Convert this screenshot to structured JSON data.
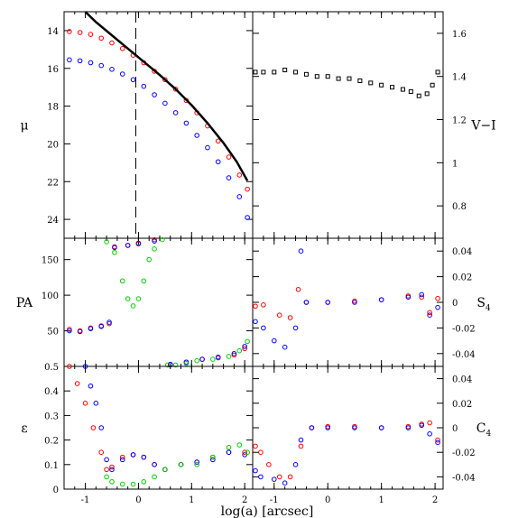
{
  "chart_data": {
    "type": "scatter",
    "xlabel": "log(a) [arcsec]",
    "x_ticks": [
      "-1",
      "0",
      "1",
      "2"
    ],
    "xlim": [
      -1.4,
      2.15
    ],
    "colors": {
      "red": "#ff0000",
      "blue": "#0000ff",
      "green": "#00cc00",
      "black": "#000000"
    },
    "panels": [
      {
        "id": "mu",
        "ylabel": "μ",
        "ylim": [
          25,
          13
        ],
        "yticks": [
          14,
          16,
          18,
          20,
          22,
          24
        ],
        "ytick_side": "left",
        "vline_x": -0.05,
        "series": [
          {
            "color": "red",
            "points": [
              [
                -1.3,
                14.05
              ],
              [
                -1.1,
                14.1
              ],
              [
                -0.9,
                14.2
              ],
              [
                -0.7,
                14.4
              ],
              [
                -0.5,
                14.65
              ],
              [
                -0.3,
                14.95
              ],
              [
                -0.1,
                15.3
              ],
              [
                0.1,
                15.7
              ],
              [
                0.3,
                16.15
              ],
              [
                0.5,
                16.6
              ],
              [
                0.7,
                17.1
              ],
              [
                0.9,
                17.7
              ],
              [
                1.1,
                18.35
              ],
              [
                1.3,
                19.05
              ],
              [
                1.5,
                19.85
              ],
              [
                1.7,
                20.7
              ],
              [
                1.9,
                21.65
              ],
              [
                2.05,
                22.4
              ]
            ]
          },
          {
            "color": "blue",
            "points": [
              [
                -1.3,
                15.55
              ],
              [
                -1.1,
                15.6
              ],
              [
                -0.9,
                15.7
              ],
              [
                -0.7,
                15.85
              ],
              [
                -0.5,
                16.05
              ],
              [
                -0.3,
                16.3
              ],
              [
                -0.1,
                16.6
              ],
              [
                0.1,
                16.95
              ],
              [
                0.3,
                17.4
              ],
              [
                0.5,
                17.85
              ],
              [
                0.7,
                18.35
              ],
              [
                0.9,
                18.9
              ],
              [
                1.1,
                19.55
              ],
              [
                1.3,
                20.2
              ],
              [
                1.5,
                20.95
              ],
              [
                1.7,
                21.8
              ],
              [
                1.9,
                22.8
              ],
              [
                2.05,
                23.9
              ]
            ]
          },
          {
            "color": "black",
            "line": true,
            "points": [
              [
                -1.0,
                13.0
              ],
              [
                -0.8,
                13.55
              ],
              [
                -0.5,
                14.25
              ],
              [
                -0.2,
                14.95
              ],
              [
                0.1,
                15.65
              ],
              [
                0.4,
                16.35
              ],
              [
                0.7,
                17.1
              ],
              [
                1.0,
                17.95
              ],
              [
                1.3,
                18.9
              ],
              [
                1.6,
                19.95
              ],
              [
                1.85,
                20.95
              ],
              [
                2.05,
                21.95
              ]
            ]
          }
        ]
      },
      {
        "id": "vi",
        "ylabel": "V−I",
        "ylim": [
          0.65,
          1.7
        ],
        "yticks": [
          0.8,
          1.0,
          1.2,
          1.4,
          1.6
        ],
        "ytick_side": "right",
        "series": [
          {
            "color": "black",
            "square": true,
            "points": [
              [
                -1.35,
                1.42
              ],
              [
                -1.2,
                1.42
              ],
              [
                -1.0,
                1.42
              ],
              [
                -0.8,
                1.43
              ],
              [
                -0.6,
                1.42
              ],
              [
                -0.4,
                1.41
              ],
              [
                -0.2,
                1.4
              ],
              [
                0.0,
                1.4
              ],
              [
                0.2,
                1.39
              ],
              [
                0.4,
                1.39
              ],
              [
                0.6,
                1.38
              ],
              [
                0.8,
                1.37
              ],
              [
                1.0,
                1.36
              ],
              [
                1.2,
                1.35
              ],
              [
                1.4,
                1.34
              ],
              [
                1.55,
                1.33
              ],
              [
                1.7,
                1.31
              ],
              [
                1.85,
                1.32
              ],
              [
                1.95,
                1.36
              ],
              [
                2.05,
                1.42
              ]
            ]
          }
        ]
      },
      {
        "id": "pa",
        "ylabel": "PA",
        "ylim": [
          0,
          180
        ],
        "yticks": [
          50,
          100,
          150
        ],
        "ytick_side": "left",
        "series": [
          {
            "color": "red",
            "points": [
              [
                -1.3,
                52
              ],
              [
                -1.1,
                50
              ],
              [
                -0.9,
                54
              ],
              [
                -0.7,
                57
              ],
              [
                -0.55,
                60
              ],
              [
                -0.45,
                168
              ],
              [
                -0.2,
                170
              ],
              [
                0.0,
                172
              ],
              [
                0.3,
                178
              ],
              [
                0.6,
                2
              ],
              [
                0.9,
                6
              ],
              [
                1.2,
                10
              ],
              [
                1.5,
                12
              ],
              [
                1.8,
                16
              ],
              [
                2.0,
                25
              ]
            ]
          },
          {
            "color": "blue",
            "points": [
              [
                -1.3,
                50
              ],
              [
                -1.1,
                49
              ],
              [
                -0.9,
                53
              ],
              [
                -0.7,
                56
              ],
              [
                -0.55,
                62
              ],
              [
                -0.45,
                167
              ],
              [
                -0.2,
                170
              ],
              [
                0.0,
                173
              ],
              [
                0.3,
                176
              ],
              [
                0.6,
                3
              ],
              [
                0.9,
                6
              ],
              [
                1.2,
                10
              ],
              [
                1.5,
                13
              ],
              [
                1.8,
                18
              ],
              [
                2.0,
                28
              ]
            ]
          },
          {
            "color": "green",
            "points": [
              [
                -0.6,
                175
              ],
              [
                -0.45,
                160
              ],
              [
                -0.3,
                120
              ],
              [
                -0.2,
                95
              ],
              [
                -0.1,
                85
              ],
              [
                0.0,
                95
              ],
              [
                0.1,
                120
              ],
              [
                0.2,
                150
              ],
              [
                0.3,
                165
              ],
              [
                0.45,
                178
              ],
              [
                0.55,
                2
              ],
              [
                0.7,
                2
              ],
              [
                0.9,
                4
              ],
              [
                1.1,
                8
              ],
              [
                1.4,
                10
              ],
              [
                1.7,
                14
              ],
              [
                1.9,
                22
              ],
              [
                2.05,
                35
              ]
            ]
          }
        ]
      },
      {
        "id": "s4",
        "ylabel": "S4",
        "ylim": [
          -0.05,
          0.05
        ],
        "yticks": [
          -0.04,
          -0.02,
          0,
          0.02,
          0.04
        ],
        "ytick_side": "right",
        "series": [
          {
            "color": "red",
            "points": [
              [
                -1.35,
                -0.003
              ],
              [
                -1.2,
                -0.002
              ],
              [
                -0.9,
                -0.01
              ],
              [
                -0.7,
                -0.012
              ],
              [
                -0.55,
                0.01
              ],
              [
                -0.4,
                0.0
              ],
              [
                0.0,
                0.0
              ],
              [
                0.5,
                0.001
              ],
              [
                1.0,
                0.002
              ],
              [
                1.5,
                0.005
              ],
              [
                1.75,
                0.004
              ],
              [
                1.9,
                -0.008
              ],
              [
                2.05,
                0.003
              ]
            ]
          },
          {
            "color": "blue",
            "points": [
              [
                -1.35,
                -0.015
              ],
              [
                -1.2,
                -0.02
              ],
              [
                -1.0,
                -0.03
              ],
              [
                -0.8,
                -0.035
              ],
              [
                -0.6,
                -0.02
              ],
              [
                -0.5,
                0.04
              ],
              [
                -0.4,
                0.0
              ],
              [
                0.0,
                0.0
              ],
              [
                0.5,
                0.0
              ],
              [
                1.0,
                0.002
              ],
              [
                1.5,
                0.004
              ],
              [
                1.75,
                0.006
              ],
              [
                1.9,
                -0.01
              ],
              [
                2.05,
                -0.004
              ]
            ]
          }
        ]
      },
      {
        "id": "eps",
        "ylabel": "ε",
        "ylim": [
          0,
          0.5
        ],
        "yticks": [
          0,
          0.1,
          0.2,
          0.3,
          0.4,
          0.5
        ],
        "ytick_side": "left",
        "series": [
          {
            "color": "red",
            "points": [
              [
                -1.3,
                0.5
              ],
              [
                -1.15,
                0.43
              ],
              [
                -1.0,
                0.35
              ],
              [
                -0.85,
                0.25
              ],
              [
                -0.7,
                0.15
              ],
              [
                -0.6,
                0.08
              ],
              [
                -0.5,
                0.09
              ],
              [
                -0.3,
                0.13
              ],
              [
                -0.1,
                0.14
              ],
              [
                0.1,
                0.13
              ],
              [
                0.3,
                0.1
              ],
              [
                0.5,
                0.08
              ],
              [
                0.8,
                0.1
              ],
              [
                1.1,
                0.11
              ],
              [
                1.4,
                0.13
              ],
              [
                1.7,
                0.15
              ],
              [
                2.0,
                0.15
              ]
            ]
          },
          {
            "color": "blue",
            "points": [
              [
                -1.0,
                0.5
              ],
              [
                -0.9,
                0.42
              ],
              [
                -0.8,
                0.35
              ],
              [
                -0.7,
                0.25
              ],
              [
                -0.6,
                0.12
              ],
              [
                -0.5,
                0.08
              ],
              [
                -0.3,
                0.12
              ],
              [
                -0.1,
                0.14
              ],
              [
                0.1,
                0.13
              ],
              [
                0.3,
                0.1
              ],
              [
                0.5,
                0.08
              ],
              [
                0.8,
                0.1
              ],
              [
                1.1,
                0.11
              ],
              [
                1.4,
                0.12
              ],
              [
                1.7,
                0.15
              ],
              [
                2.0,
                0.14
              ]
            ]
          },
          {
            "color": "green",
            "points": [
              [
                -0.6,
                0.05
              ],
              [
                -0.5,
                0.03
              ],
              [
                -0.3,
                0.02
              ],
              [
                -0.1,
                0.02
              ],
              [
                0.1,
                0.03
              ],
              [
                0.3,
                0.05
              ],
              [
                0.5,
                0.08
              ],
              [
                0.8,
                0.1
              ],
              [
                1.1,
                0.1
              ],
              [
                1.4,
                0.13
              ],
              [
                1.7,
                0.17
              ],
              [
                1.9,
                0.18
              ],
              [
                2.05,
                0.15
              ]
            ]
          }
        ]
      },
      {
        "id": "c4",
        "ylabel": "C4",
        "ylim": [
          -0.05,
          0.05
        ],
        "yticks": [
          -0.04,
          -0.02,
          0,
          0.02,
          0.04
        ],
        "ytick_side": "right",
        "series": [
          {
            "color": "red",
            "points": [
              [
                -1.35,
                -0.015
              ],
              [
                -1.25,
                -0.02
              ],
              [
                -1.1,
                -0.03
              ],
              [
                -0.9,
                -0.04
              ],
              [
                -0.7,
                -0.04
              ],
              [
                -0.5,
                -0.015
              ],
              [
                -0.3,
                0.0
              ],
              [
                0.0,
                0.001
              ],
              [
                0.5,
                0.001
              ],
              [
                1.0,
                0.0
              ],
              [
                1.5,
                0.001
              ],
              [
                1.75,
                0.003
              ],
              [
                1.9,
                0.004
              ],
              [
                2.05,
                -0.01
              ]
            ]
          },
          {
            "color": "blue",
            "points": [
              [
                -1.35,
                -0.035
              ],
              [
                -1.25,
                -0.04
              ],
              [
                -1.0,
                -0.042
              ],
              [
                -0.8,
                -0.045
              ],
              [
                -0.6,
                -0.03
              ],
              [
                -0.5,
                -0.01
              ],
              [
                -0.3,
                0.0
              ],
              [
                0.0,
                0.0
              ],
              [
                0.5,
                0.0
              ],
              [
                1.0,
                0.0
              ],
              [
                1.5,
                0.0
              ],
              [
                1.75,
                0.002
              ],
              [
                1.9,
                -0.005
              ],
              [
                2.05,
                -0.012
              ]
            ]
          }
        ]
      }
    ]
  }
}
